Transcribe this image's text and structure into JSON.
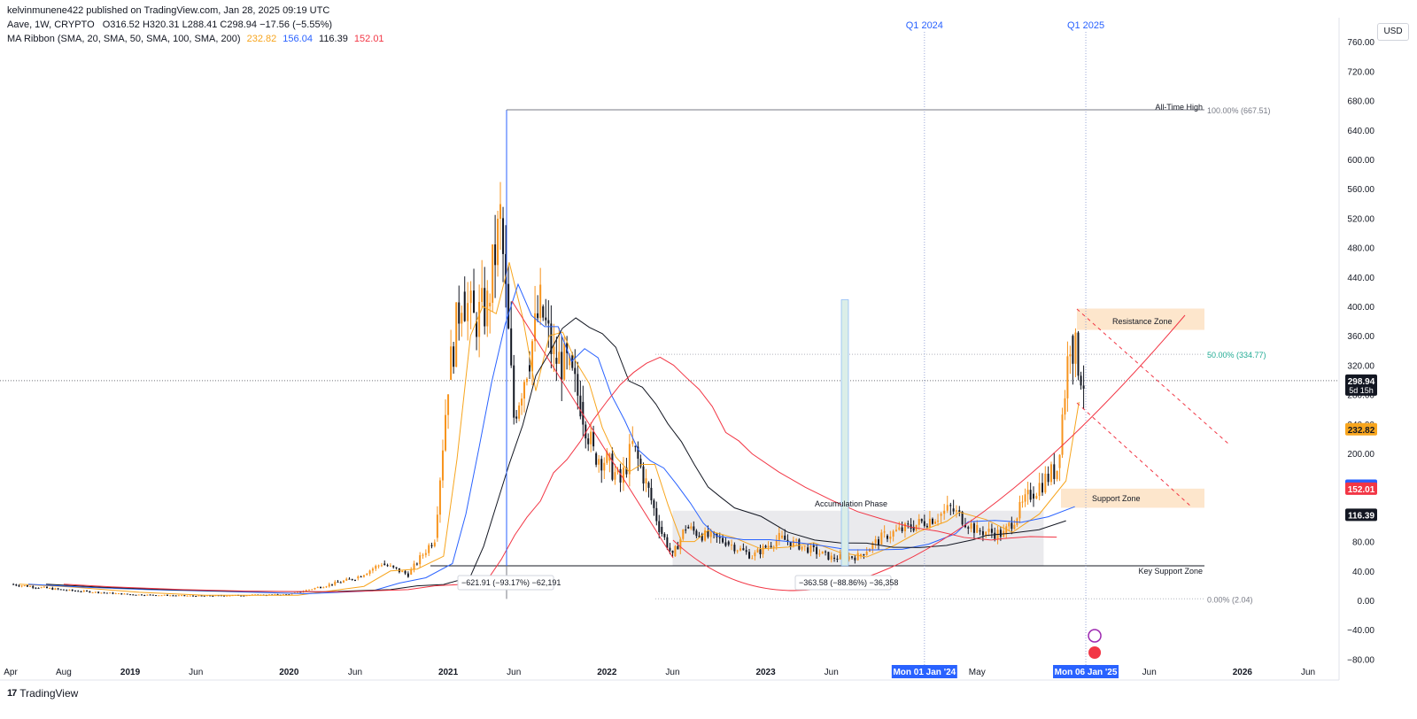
{
  "header": {
    "published": "kelvinmunene422 published on TradingView.com, Jan 28, 2025 09:19 UTC",
    "symbol": "Aave, 1W, CRYPTO",
    "ohlc": "O316.52  H320.31  L288.41  C298.94  −17.56 (−5.55%)",
    "ma_label": "MA Ribbon (SMA, 20, SMA, 50, SMA, 100, SMA, 200)",
    "ma_values": [
      {
        "value": "232.82",
        "color": "#f7a51e"
      },
      {
        "value": "156.04",
        "color": "#2962ff"
      },
      {
        "value": "116.39",
        "color": "#131722"
      },
      {
        "value": "152.01",
        "color": "#f23645"
      }
    ]
  },
  "currency": "USD",
  "footer": {
    "logo": "17",
    "brand": "TradingView"
  },
  "chart_data": {
    "type": "candlestick",
    "y_ticks": [
      760,
      720,
      680,
      640,
      600,
      560,
      520,
      480,
      440,
      400,
      360,
      320,
      280,
      240,
      200,
      160,
      120,
      80,
      40,
      0,
      -40,
      -80
    ],
    "y_tick_labels": [
      "760.00",
      "720.00",
      "680.00",
      "640.00",
      "600.00",
      "560.00",
      "520.00",
      "480.00",
      "440.00",
      "400.00",
      "360.00",
      "320.00",
      "280.00",
      "240.00",
      "200.00",
      "160.00",
      "120.00",
      "80.00",
      "40.00",
      "0.00",
      "−40.00",
      "−80.00"
    ],
    "x_ticks": [
      {
        "label": "Apr",
        "date": "2018-04",
        "bold": false
      },
      {
        "label": "Aug",
        "date": "2018-08",
        "bold": false
      },
      {
        "label": "2019",
        "date": "2019-01",
        "bold": true
      },
      {
        "label": "Jun",
        "date": "2019-06",
        "bold": false
      },
      {
        "label": "2020",
        "date": "2020-01",
        "bold": true
      },
      {
        "label": "Jun",
        "date": "2020-06",
        "bold": false
      },
      {
        "label": "2021",
        "date": "2021-01",
        "bold": true
      },
      {
        "label": "Jun",
        "date": "2021-06",
        "bold": false
      },
      {
        "label": "2022",
        "date": "2022-01",
        "bold": true
      },
      {
        "label": "Jun",
        "date": "2022-06",
        "bold": false
      },
      {
        "label": "2023",
        "date": "2023-01",
        "bold": true
      },
      {
        "label": "Jun",
        "date": "2023-06",
        "bold": false
      },
      {
        "label": "May",
        "date": "2024-05",
        "bold": false
      },
      {
        "label": "Jun",
        "date": "2025-06",
        "bold": false
      },
      {
        "label": "2026",
        "date": "2026-01",
        "bold": true
      },
      {
        "label": "Jun",
        "date": "2026-06",
        "bold": false
      }
    ],
    "x_highlight_labels": [
      {
        "label": "Mon 01 Jan '24",
        "date": "2024-01-01"
      },
      {
        "label": "Mon 06 Jan '25",
        "date": "2025-01-06"
      }
    ],
    "quarter_markers": [
      {
        "label": "Q1 2024",
        "date": "2024-01-01"
      },
      {
        "label": "Q1 2025",
        "date": "2025-01-06"
      }
    ],
    "price_series": [
      [
        "2018-04",
        22
      ],
      [
        "2018-08",
        14
      ],
      [
        "2019-01",
        8
      ],
      [
        "2019-06",
        6
      ],
      [
        "2020-01",
        8
      ],
      [
        "2020-06",
        30
      ],
      [
        "2020-08",
        50
      ],
      [
        "2020-10",
        35
      ],
      [
        "2020-12",
        85
      ],
      [
        "2021-01",
        300
      ],
      [
        "2021-02",
        420
      ],
      [
        "2021-03",
        380
      ],
      [
        "2021-04",
        400
      ],
      [
        "2021-05",
        520
      ],
      [
        "2021-06",
        250
      ],
      [
        "2021-07",
        320
      ],
      [
        "2021-08",
        400
      ],
      [
        "2021-09",
        330
      ],
      [
        "2021-10",
        320
      ],
      [
        "2021-11",
        270
      ],
      [
        "2021-12",
        200
      ],
      [
        "2022-01",
        190
      ],
      [
        "2022-02",
        160
      ],
      [
        "2022-03",
        210
      ],
      [
        "2022-04",
        160
      ],
      [
        "2022-05",
        100
      ],
      [
        "2022-06",
        60
      ],
      [
        "2022-07",
        100
      ],
      [
        "2022-08",
        90
      ],
      [
        "2022-10",
        80
      ],
      [
        "2022-12",
        60
      ],
      [
        "2023-02",
        85
      ],
      [
        "2023-04",
        72
      ],
      [
        "2023-06",
        58
      ],
      [
        "2023-08",
        60
      ],
      [
        "2023-10",
        88
      ],
      [
        "2023-12",
        100
      ],
      [
        "2024-02",
        115
      ],
      [
        "2024-03",
        125
      ],
      [
        "2024-05",
        95
      ],
      [
        "2024-07",
        90
      ],
      [
        "2024-09",
        145
      ],
      [
        "2024-11",
        180
      ],
      [
        "2024-12",
        360
      ],
      [
        "2025-01",
        300
      ]
    ],
    "series": [
      {
        "name": "SMA 20",
        "color": "#f7a51e",
        "value": 232.82
      },
      {
        "name": "SMA 50",
        "color": "#2962ff",
        "value": 156.04
      },
      {
        "name": "SMA 100",
        "color": "#131722",
        "value": 116.39
      },
      {
        "name": "SMA 200",
        "color": "#f23645",
        "value": 152.01
      }
    ],
    "last_price": 298.94,
    "last_price_label": "298.94",
    "countdown": "5d 15h",
    "price_labels": [
      {
        "value": 232.82,
        "text": "232.82",
        "color": "#f7a51e"
      },
      {
        "value": 156.04,
        "text": "156.04",
        "color": "#2962ff"
      },
      {
        "value": 152.01,
        "text": "152.01",
        "color": "#f23645"
      },
      {
        "value": 116.39,
        "text": "116.39",
        "color": "#131722"
      }
    ],
    "fib_levels": [
      {
        "value": 667.51,
        "text": "100.00% (667.51)"
      },
      {
        "value": 334.77,
        "text": "50.00% (334.77)"
      },
      {
        "value": 2.04,
        "text": "0.00% (2.04)"
      }
    ],
    "annotations": {
      "all_time_high": "All-Time High",
      "resistance_zone": "Resistance Zone",
      "support_zone": "Support Zone",
      "accumulation_phase": "Accumulation Phase",
      "key_support_zone": "Key Support Zone",
      "measure1": "−621.91 (−93.17%) −62,191",
      "measure2": "−363.58 (−88.86%) −36,358"
    },
    "zones": {
      "resistance": [
        368,
        397
      ],
      "support": [
        126,
        152
      ],
      "accumulation": {
        "from": "2022-06",
        "to": "2024-10",
        "low": 47,
        "high": 122
      },
      "key_support": 47
    }
  }
}
